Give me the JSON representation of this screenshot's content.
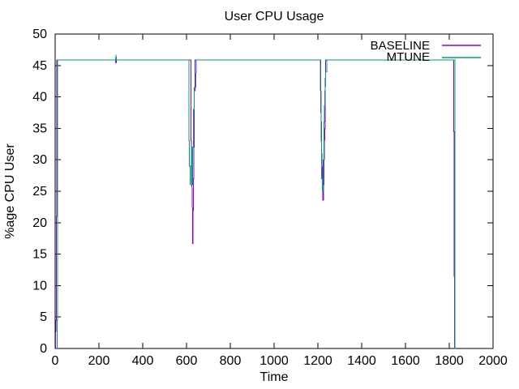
{
  "chart_data": {
    "type": "line",
    "title": "User CPU Usage",
    "xlabel": "Time",
    "ylabel": "%age CPU User",
    "xlim": [
      0,
      2000
    ],
    "ylim": [
      0,
      50
    ],
    "x_ticks": [
      0,
      200,
      400,
      600,
      800,
      1000,
      1200,
      1400,
      1600,
      1800,
      2000
    ],
    "y_ticks": [
      0,
      5,
      10,
      15,
      20,
      25,
      30,
      35,
      40,
      45,
      50
    ],
    "grid": false,
    "legend_position": "top-right-inside",
    "background_color": "#ffffff",
    "axis_color": "#000000",
    "series": [
      {
        "name": "BASELINE",
        "color": "#9400d3",
        "points": [
          [
            2,
            0
          ],
          [
            3,
            3
          ],
          [
            3,
            4.5
          ],
          [
            5,
            4.5
          ],
          [
            5,
            13
          ],
          [
            6,
            13
          ],
          [
            6,
            21
          ],
          [
            7,
            21
          ],
          [
            7,
            29
          ],
          [
            8,
            29
          ],
          [
            8,
            45.9
          ],
          [
            276,
            45.9
          ],
          [
            277,
            45.4
          ],
          [
            280,
            45.4
          ],
          [
            280,
            45.9
          ],
          [
            620,
            45.9
          ],
          [
            621,
            33
          ],
          [
            622,
            33
          ],
          [
            622,
            29
          ],
          [
            624,
            29
          ],
          [
            625,
            25
          ],
          [
            626,
            25
          ],
          [
            627,
            22
          ],
          [
            628,
            22
          ],
          [
            628,
            16.7
          ],
          [
            630,
            16.7
          ],
          [
            630,
            22
          ],
          [
            631,
            22
          ],
          [
            632,
            27
          ],
          [
            633,
            27
          ],
          [
            634,
            32
          ],
          [
            635,
            32
          ],
          [
            636,
            41
          ],
          [
            638,
            41
          ],
          [
            638,
            45.9
          ],
          [
            1213,
            45.9
          ],
          [
            1214,
            36
          ],
          [
            1216,
            36
          ],
          [
            1217,
            31
          ],
          [
            1219,
            31
          ],
          [
            1220,
            27
          ],
          [
            1221,
            27
          ],
          [
            1222,
            23.6
          ],
          [
            1225,
            23.6
          ],
          [
            1226,
            26
          ],
          [
            1228,
            26
          ],
          [
            1229,
            31
          ],
          [
            1230,
            31
          ],
          [
            1231,
            35
          ],
          [
            1233,
            35
          ],
          [
            1234,
            43
          ],
          [
            1235,
            43
          ],
          [
            1236,
            45.9
          ],
          [
            1820,
            45.9
          ],
          [
            1820,
            34.5
          ],
          [
            1822,
            34.5
          ],
          [
            1822,
            11.5
          ],
          [
            1824,
            11.5
          ],
          [
            1824,
            0
          ],
          [
            1826,
            0
          ]
        ]
      },
      {
        "name": "MTUNE",
        "color": "#009e73",
        "points": [
          [
            7,
            0
          ],
          [
            9,
            0
          ],
          [
            9,
            4.5
          ],
          [
            11,
            4.5
          ],
          [
            11,
            45.9
          ],
          [
            276,
            45.9
          ],
          [
            278,
            46.7
          ],
          [
            280,
            45.9
          ],
          [
            611,
            45.9
          ],
          [
            611,
            33
          ],
          [
            613,
            33
          ],
          [
            613,
            29
          ],
          [
            616,
            29
          ],
          [
            616,
            26
          ],
          [
            619,
            26
          ],
          [
            619,
            29
          ],
          [
            622,
            29
          ],
          [
            622,
            32
          ],
          [
            625,
            32
          ],
          [
            625,
            26
          ],
          [
            628,
            26
          ],
          [
            628,
            32
          ],
          [
            631,
            32
          ],
          [
            632,
            38
          ],
          [
            635,
            38
          ],
          [
            636,
            41.5
          ],
          [
            643,
            41.5
          ],
          [
            644,
            45.9
          ],
          [
            1211,
            45.9
          ],
          [
            1212,
            41
          ],
          [
            1214,
            41
          ],
          [
            1214,
            33
          ],
          [
            1217,
            33
          ],
          [
            1217,
            27
          ],
          [
            1220,
            27
          ],
          [
            1221,
            25
          ],
          [
            1224,
            25
          ],
          [
            1224,
            30
          ],
          [
            1227,
            30
          ],
          [
            1228,
            36
          ],
          [
            1230,
            36
          ],
          [
            1231,
            41
          ],
          [
            1234,
            41
          ],
          [
            1235,
            44
          ],
          [
            1240,
            44
          ],
          [
            1241,
            45.9
          ],
          [
            1826,
            45.9
          ],
          [
            1826,
            0
          ]
        ]
      }
    ]
  }
}
